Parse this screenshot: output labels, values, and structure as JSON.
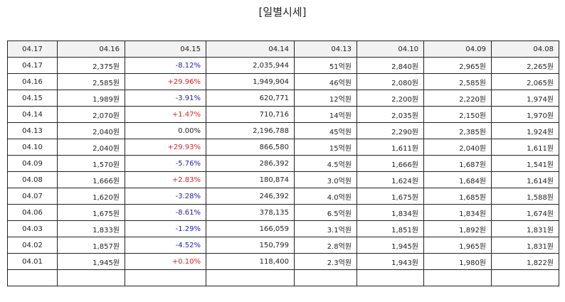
{
  "title": "[일별시세]",
  "colors": {
    "up": "#d62728",
    "down": "#2222aa",
    "flat": "#222222",
    "header_bg": "#f2f2f2"
  },
  "header": [
    "04.17",
    "04.16",
    "04.15",
    "04.14",
    "04.13",
    "04.10",
    "04.09",
    "04.08"
  ],
  "rows": [
    {
      "date": "04.17",
      "close": "2,375원",
      "change": "-8.12%",
      "direction": "down",
      "volume": "2,035,944",
      "amount": "51억원",
      "open": "2,840원",
      "high": "2,965원",
      "low": "2,265원"
    },
    {
      "date": "04.16",
      "close": "2,585원",
      "change": "+29.96%",
      "direction": "up",
      "volume": "1,949,904",
      "amount": "46억원",
      "open": "2,080원",
      "high": "2,585원",
      "low": "2,065원"
    },
    {
      "date": "04.15",
      "close": "1,989원",
      "change": "-3.91%",
      "direction": "down",
      "volume": "620,771",
      "amount": "12억원",
      "open": "2,200원",
      "high": "2,220원",
      "low": "1,974원"
    },
    {
      "date": "04.14",
      "close": "2,070원",
      "change": "+1.47%",
      "direction": "up",
      "volume": "710,716",
      "amount": "14억원",
      "open": "2,035원",
      "high": "2,150원",
      "low": "1,970원"
    },
    {
      "date": "04.13",
      "close": "2,040원",
      "change": "0.00%",
      "direction": "flat",
      "volume": "2,196,788",
      "amount": "45억원",
      "open": "2,290원",
      "high": "2,385원",
      "low": "1,924원"
    },
    {
      "date": "04.10",
      "close": "2,040원",
      "change": "+29.93%",
      "direction": "up",
      "volume": "866,580",
      "amount": "15억원",
      "open": "1,611원",
      "high": "2,040원",
      "low": "1,611원"
    },
    {
      "date": "04.09",
      "close": "1,570원",
      "change": "-5.76%",
      "direction": "down",
      "volume": "286,392",
      "amount": "4.5억원",
      "open": "1,666원",
      "high": "1,687원",
      "low": "1,541원"
    },
    {
      "date": "04.08",
      "close": "1,666원",
      "change": "+2.83%",
      "direction": "up",
      "volume": "180,874",
      "amount": "3.0억원",
      "open": "1,624원",
      "high": "1,684원",
      "low": "1,614원"
    },
    {
      "date": "04.07",
      "close": "1,620원",
      "change": "-3.28%",
      "direction": "down",
      "volume": "246,392",
      "amount": "4.0억원",
      "open": "1,675원",
      "high": "1,685원",
      "low": "1,588원"
    },
    {
      "date": "04.06",
      "close": "1,675원",
      "change": "-8.61%",
      "direction": "down",
      "volume": "378,135",
      "amount": "6.5억원",
      "open": "1,834원",
      "high": "1,834원",
      "low": "1,674원"
    },
    {
      "date": "04.03",
      "close": "1,833원",
      "change": "-1.29%",
      "direction": "down",
      "volume": "166,059",
      "amount": "3.1억원",
      "open": "1,851원",
      "high": "1,892원",
      "low": "1,831원"
    },
    {
      "date": "04.02",
      "close": "1,857원",
      "change": "-4.52%",
      "direction": "down",
      "volume": "150,799",
      "amount": "2.8억원",
      "open": "1,945원",
      "high": "1,965원",
      "low": "1,831원"
    },
    {
      "date": "04.01",
      "close": "1,945원",
      "change": "+0.10%",
      "direction": "up",
      "volume": "118,400",
      "amount": "2.3억원",
      "open": "1,943원",
      "high": "1,980원",
      "low": "1,822원"
    }
  ]
}
